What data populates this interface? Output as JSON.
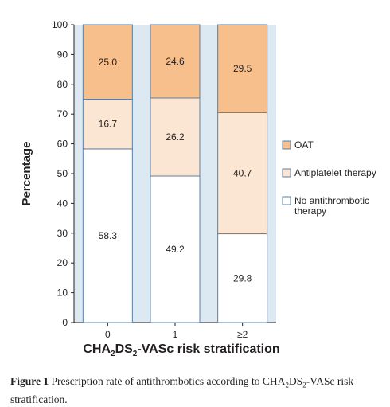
{
  "chart_data": {
    "type": "bar",
    "stacked": true,
    "categories": [
      "0",
      "1",
      "≥2"
    ],
    "series": [
      {
        "name": "No antithrombotic therapy",
        "values": [
          58.3,
          49.2,
          29.8
        ],
        "color": "#ffffff"
      },
      {
        "name": "Antiplatelet therapy",
        "values": [
          16.7,
          26.2,
          40.7
        ],
        "color": "#fbe6d3"
      },
      {
        "name": "OAT",
        "values": [
          25.0,
          24.6,
          29.5
        ],
        "color": "#f7bf8c"
      }
    ],
    "ylabel": "Percentage",
    "ylim": [
      0,
      100
    ],
    "yticks": [
      0,
      10,
      20,
      30,
      40,
      50,
      60,
      70,
      80,
      90,
      100
    ],
    "legend_order": [
      "OAT",
      "Antiplatelet therapy",
      "No antithrombotic therapy"
    ],
    "legend_position": "right",
    "grid": false,
    "plot_background": "#dde9f2",
    "bar_edge_color": "#5b7fa6"
  },
  "xlabel": {
    "parts": [
      {
        "text": "CHA",
        "sub": false
      },
      {
        "text": "2",
        "sub": true
      },
      {
        "text": "DS",
        "sub": false
      },
      {
        "text": "2",
        "sub": true
      },
      {
        "text": "-VASc risk stratification",
        "sub": false
      }
    ]
  },
  "caption": {
    "label": "Figure 1",
    "parts": [
      {
        "text": " Prescription rate of antithrombotics according to CHA",
        "sub": false
      },
      {
        "text": "2",
        "sub": true
      },
      {
        "text": "DS",
        "sub": false
      },
      {
        "text": "2",
        "sub": true
      },
      {
        "text": "-VASc risk stratification.",
        "sub": false
      }
    ]
  }
}
